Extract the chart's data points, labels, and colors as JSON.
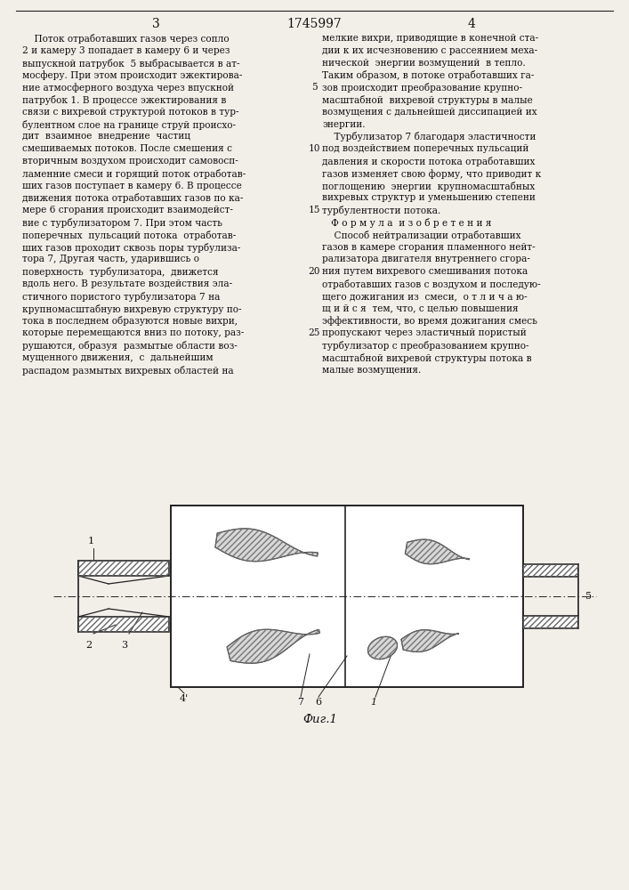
{
  "page_number_left": "3",
  "page_number_center": "1745997",
  "page_number_right": "4",
  "col1_text": [
    "    Поток отработавших газов через сопло",
    "2 и камеру 3 попадает в камеру 6 и через",
    "выпускной патрубок  5 выбрасывается в ат-",
    "мосферу. При этом происходит эжектирова-",
    "ние атмосферного воздуха через впускной",
    "патрубок 1. В процессе эжектирования в",
    "связи с вихревой структурой потоков в тур-",
    "булентном слое на границе струй происхо-",
    "дит  взаимное  внедрение  частиц",
    "смешиваемых потоков. После смешения с",
    "вторичным воздухом происходит самовосп-",
    "ламенние смеси и горящий поток отработав-",
    "ших газов поступает в камеру 6. В процессе",
    "движения потока отработавших газов по ка-",
    "мере 6 сгорания происходит взаимодейст-",
    "вие с турбулизатором 7. При этом часть",
    "поперечных  пульсаций потока  отработав-",
    "ших газов проходит сквозь поры турбулиза-",
    "тора 7, Другая часть, ударившись о",
    "поверхность  турбулизатора,  движется",
    "вдоль него. В результате воздействия эла-",
    "стичного пористого турбулизатора 7 на",
    "крупномасштабную вихревую структуру по-",
    "тока в последнем образуются новые вихри,",
    "которые перемещаются вниз по потоку, раз-",
    "рушаются, образуя  размытые области воз-",
    "мущенного движения,  с  дальнейшим",
    "распадом размытых вихревых областей на"
  ],
  "col2_text": [
    "мелкие вихри, приводящие в конечной ста-",
    "дии к их исчезновению с рассеянием меха-",
    "нической  энергии возмущений  в тепло.",
    "Таким образом, в потоке отработавших га-",
    "зов происходит преобразование крупно-",
    "масштабной  вихревой структуры в малые",
    "возмущения с дальнейшей диссипацией их",
    "энергии.",
    "    Турбулизатор 7 благодаря эластичности",
    "под воздействием поперечных пульсаций",
    "давления и скорости потока отработавших",
    "газов изменяет свою форму, что приводит к",
    "поглощению  энергии  крупномасштабных",
    "вихревых структур и уменьшению степени",
    "турбулентности потока.",
    "   Ф о р м у л а  и з о б р е т е н и я",
    "    Способ нейтрализации отработавших",
    "газов в камере сгорания пламенного нейт-",
    "рализатора двигателя внутреннего сгора-",
    "ния путем вихревого смешивания потока",
    "отработавших газов с воздухом и последую-",
    "щего дожигания из  смеси,  о т л и ч а ю-",
    "щ и й с я  тем, что, с целью повышения",
    "эффективности, во время дожигания смесь",
    "пропускают через эластичный пористый",
    "турбулизатор с преобразованием крупно-",
    "масштабной вихревой структуры потока в",
    "малые возмущения."
  ],
  "line_numbers": [
    {
      "num": "5",
      "row_idx": 4
    },
    {
      "num": "10",
      "row_idx": 9
    },
    {
      "num": "15",
      "row_idx": 14
    },
    {
      "num": "20",
      "row_idx": 19
    },
    {
      "num": "25",
      "row_idx": 24
    }
  ],
  "figure_caption": "Фиг.1",
  "bg": "#f2efe9",
  "tc": "#111111",
  "lc": "#222222"
}
